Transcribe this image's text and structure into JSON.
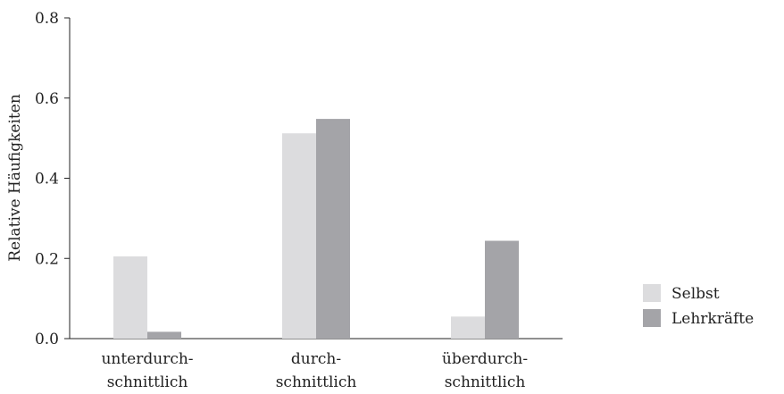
{
  "chart_data": {
    "type": "bar",
    "title": "",
    "xlabel": "",
    "ylabel": "Relative Häufigkeiten",
    "ylim": [
      0,
      0.8
    ],
    "yticks": [
      0.0,
      0.2,
      0.4,
      0.6,
      0.8
    ],
    "ytick_labels": [
      "0.0",
      "0.2",
      "0.4",
      "0.6",
      "0.8"
    ],
    "categories": [
      [
        "unterdurch-",
        "schnittlich"
      ],
      [
        "durch-",
        "schnittlich"
      ],
      [
        "überdurch-",
        "schnittlich"
      ]
    ],
    "series": [
      {
        "name": "Selbst",
        "color": "#dcdcde",
        "values": [
          0.205,
          0.512,
          0.055
        ]
      },
      {
        "name": "Lehrkräfte",
        "color": "#a4a4a8",
        "values": [
          0.017,
          0.548,
          0.244
        ]
      }
    ],
    "grid": false,
    "legend_position": "right"
  }
}
